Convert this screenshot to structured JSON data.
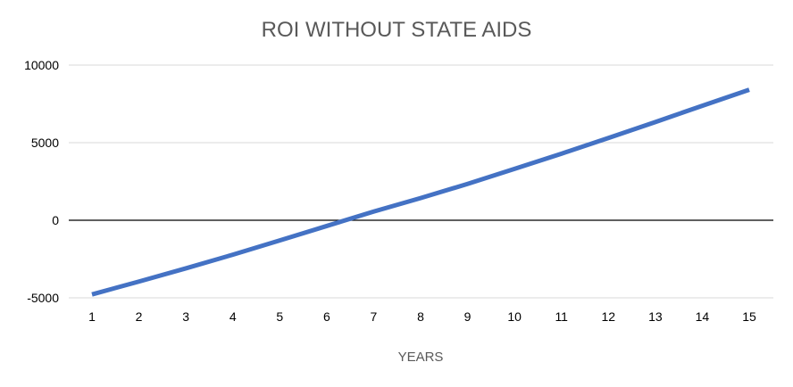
{
  "chart_data": {
    "type": "line",
    "title": "ROI WITHOUT STATE AIDS",
    "xlabel": "YEARS",
    "ylabel": "",
    "x": [
      1,
      2,
      3,
      4,
      5,
      6,
      7,
      8,
      9,
      10,
      11,
      12,
      13,
      14,
      15
    ],
    "series": [
      {
        "values": [
          -4780,
          -3950,
          -3100,
          -2220,
          -1300,
          -370,
          560,
          1430,
          2340,
          3310,
          4290,
          5300,
          6330,
          7380,
          8410
        ]
      }
    ],
    "ylim": [
      -5000,
      10000
    ],
    "yticks": [
      -5000,
      0,
      5000,
      10000
    ],
    "ytick_labels": [
      "-5000",
      "0",
      "5000",
      "10000"
    ],
    "xtick_labels": [
      "1",
      "2",
      "3",
      "4",
      "5",
      "6",
      "7",
      "8",
      "9",
      "10",
      "11",
      "12",
      "13",
      "14",
      "15"
    ],
    "grid": true,
    "legend": "none",
    "colors": {
      "series": "#4472C4",
      "grid": "#D9D9D9",
      "zero_line": "#000000",
      "text": "#595959"
    }
  }
}
